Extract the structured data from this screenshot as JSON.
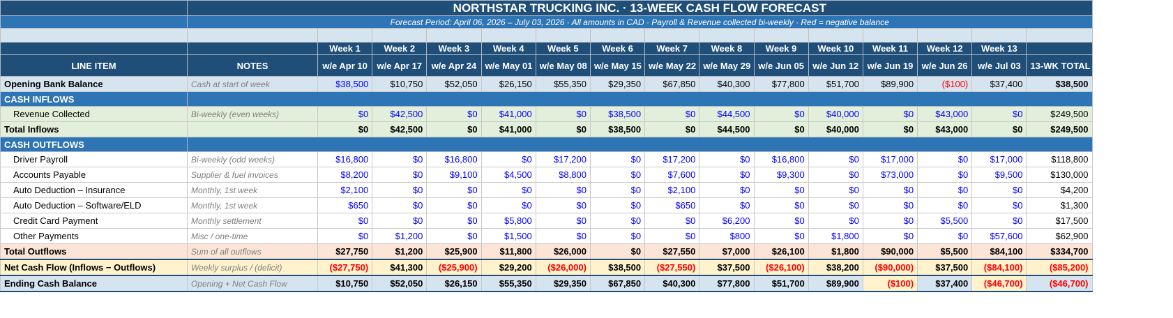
{
  "header": {
    "title": "NORTHSTAR TRUCKING INC.  ·  13-WEEK CASH FLOW FORECAST",
    "subtitle": "Forecast Period: April 06, 2026 – July 03, 2026  ·  All amounts in CAD  ·  Payroll & Revenue collected bi-weekly  ·  Red = negative balance"
  },
  "columns": {
    "line_item": "LINE ITEM",
    "notes": "NOTES",
    "total": "13-WK TOTAL",
    "weeks": [
      {
        "week": "Week 1",
        "date": "w/e Apr 10"
      },
      {
        "week": "Week 2",
        "date": "w/e Apr 17"
      },
      {
        "week": "Week 3",
        "date": "w/e Apr 24"
      },
      {
        "week": "Week 4",
        "date": "w/e May 01"
      },
      {
        "week": "Week 5",
        "date": "w/e May 08"
      },
      {
        "week": "Week 6",
        "date": "w/e May 15"
      },
      {
        "week": "Week 7",
        "date": "w/e May 22"
      },
      {
        "week": "Week 8",
        "date": "w/e May 29"
      },
      {
        "week": "Week 9",
        "date": "w/e Jun 05"
      },
      {
        "week": "Week 10",
        "date": "w/e Jun 12"
      },
      {
        "week": "Week 11",
        "date": "w/e Jun 19"
      },
      {
        "week": "Week 12",
        "date": "w/e Jun 26"
      },
      {
        "week": "Week 13",
        "date": "w/e Jul 03"
      }
    ]
  },
  "colors": {
    "header_dark": "#1f4e79",
    "header_mid": "#2e75b6",
    "input_blue": "#0000ff",
    "negative_red": "#ff0000",
    "inflow_bg": "#e2efda",
    "outflow_total_bg": "#fce4d6",
    "net_bg": "#fff2cc",
    "balance_bg": "#d6e4f0"
  },
  "rows": {
    "opening": {
      "label": "Opening Bank Balance",
      "note": "Cash at start of week",
      "values": [
        "$38,500",
        "$10,750",
        "$52,050",
        "$26,150",
        "$55,350",
        "$29,350",
        "$67,850",
        "$40,300",
        "$77,800",
        "$51,700",
        "$89,900",
        "($100)",
        "$37,400"
      ],
      "total": "$38,500"
    },
    "section_inflows": {
      "label": "CASH INFLOWS"
    },
    "revenue": {
      "label": "Revenue Collected",
      "note": "Bi-weekly (even weeks)",
      "values": [
        "$0",
        "$42,500",
        "$0",
        "$41,000",
        "$0",
        "$38,500",
        "$0",
        "$44,500",
        "$0",
        "$40,000",
        "$0",
        "$43,000",
        "$0"
      ],
      "total": "$249,500"
    },
    "total_inflows": {
      "label": "Total Inflows",
      "note": "",
      "values": [
        "$0",
        "$42,500",
        "$0",
        "$41,000",
        "$0",
        "$38,500",
        "$0",
        "$44,500",
        "$0",
        "$40,000",
        "$0",
        "$43,000",
        "$0"
      ],
      "total": "$249,500"
    },
    "section_outflows": {
      "label": "CASH OUTFLOWS"
    },
    "driver_payroll": {
      "label": "Driver Payroll",
      "note": "Bi-weekly (odd weeks)",
      "values": [
        "$16,800",
        "$0",
        "$16,800",
        "$0",
        "$17,200",
        "$0",
        "$17,200",
        "$0",
        "$16,800",
        "$0",
        "$17,000",
        "$0",
        "$17,000"
      ],
      "total": "$118,800"
    },
    "accounts_payable": {
      "label": "Accounts Payable",
      "note": "Supplier & fuel invoices",
      "values": [
        "$8,200",
        "$0",
        "$9,100",
        "$4,500",
        "$8,800",
        "$0",
        "$7,600",
        "$0",
        "$9,300",
        "$0",
        "$73,000",
        "$0",
        "$9,500"
      ],
      "total": "$130,000"
    },
    "auto_insurance": {
      "label": "Auto Deduction – Insurance",
      "note": "Monthly, 1st week",
      "values": [
        "$2,100",
        "$0",
        "$0",
        "$0",
        "$0",
        "$0",
        "$2,100",
        "$0",
        "$0",
        "$0",
        "$0",
        "$0",
        "$0"
      ],
      "total": "$4,200"
    },
    "auto_software": {
      "label": "Auto Deduction – Software/ELD",
      "note": "Monthly, 1st week",
      "values": [
        "$650",
        "$0",
        "$0",
        "$0",
        "$0",
        "$0",
        "$650",
        "$0",
        "$0",
        "$0",
        "$0",
        "$0",
        "$0"
      ],
      "total": "$1,300"
    },
    "credit_card": {
      "label": "Credit Card Payment",
      "note": "Monthly settlement",
      "values": [
        "$0",
        "$0",
        "$0",
        "$5,800",
        "$0",
        "$0",
        "$0",
        "$6,200",
        "$0",
        "$0",
        "$0",
        "$5,500",
        "$0"
      ],
      "total": "$17,500"
    },
    "other_payments": {
      "label": "Other Payments",
      "note": "Misc / one-time",
      "values": [
        "$0",
        "$1,200",
        "$0",
        "$1,500",
        "$0",
        "$0",
        "$0",
        "$800",
        "$0",
        "$1,800",
        "$0",
        "$0",
        "$57,600"
      ],
      "total": "$62,900"
    },
    "total_outflows": {
      "label": "Total Outflows",
      "note": "Sum of all outflows",
      "values": [
        "$27,750",
        "$1,200",
        "$25,900",
        "$11,800",
        "$26,000",
        "$0",
        "$27,550",
        "$7,000",
        "$26,100",
        "$1,800",
        "$90,000",
        "$5,500",
        "$84,100"
      ],
      "total": "$334,700"
    },
    "net_cash_flow": {
      "label": "Net Cash Flow (Inflows − Outflows)",
      "note": "Weekly surplus / (deficit)",
      "values": [
        "($27,750)",
        "$41,300",
        "($25,900)",
        "$29,200",
        "($26,000)",
        "$38,500",
        "($27,550)",
        "$37,500",
        "($26,100)",
        "$38,200",
        "($90,000)",
        "$37,500",
        "($84,100)"
      ],
      "total": "($85,200)"
    },
    "ending_balance": {
      "label": "Ending Cash Balance",
      "note": "Opening + Net Cash Flow",
      "values": [
        "$10,750",
        "$52,050",
        "$26,150",
        "$55,350",
        "$29,350",
        "$67,850",
        "$40,300",
        "$77,800",
        "$51,700",
        "$89,900",
        "($100)",
        "$37,400",
        "($46,700)"
      ],
      "total": "($46,700)"
    }
  }
}
